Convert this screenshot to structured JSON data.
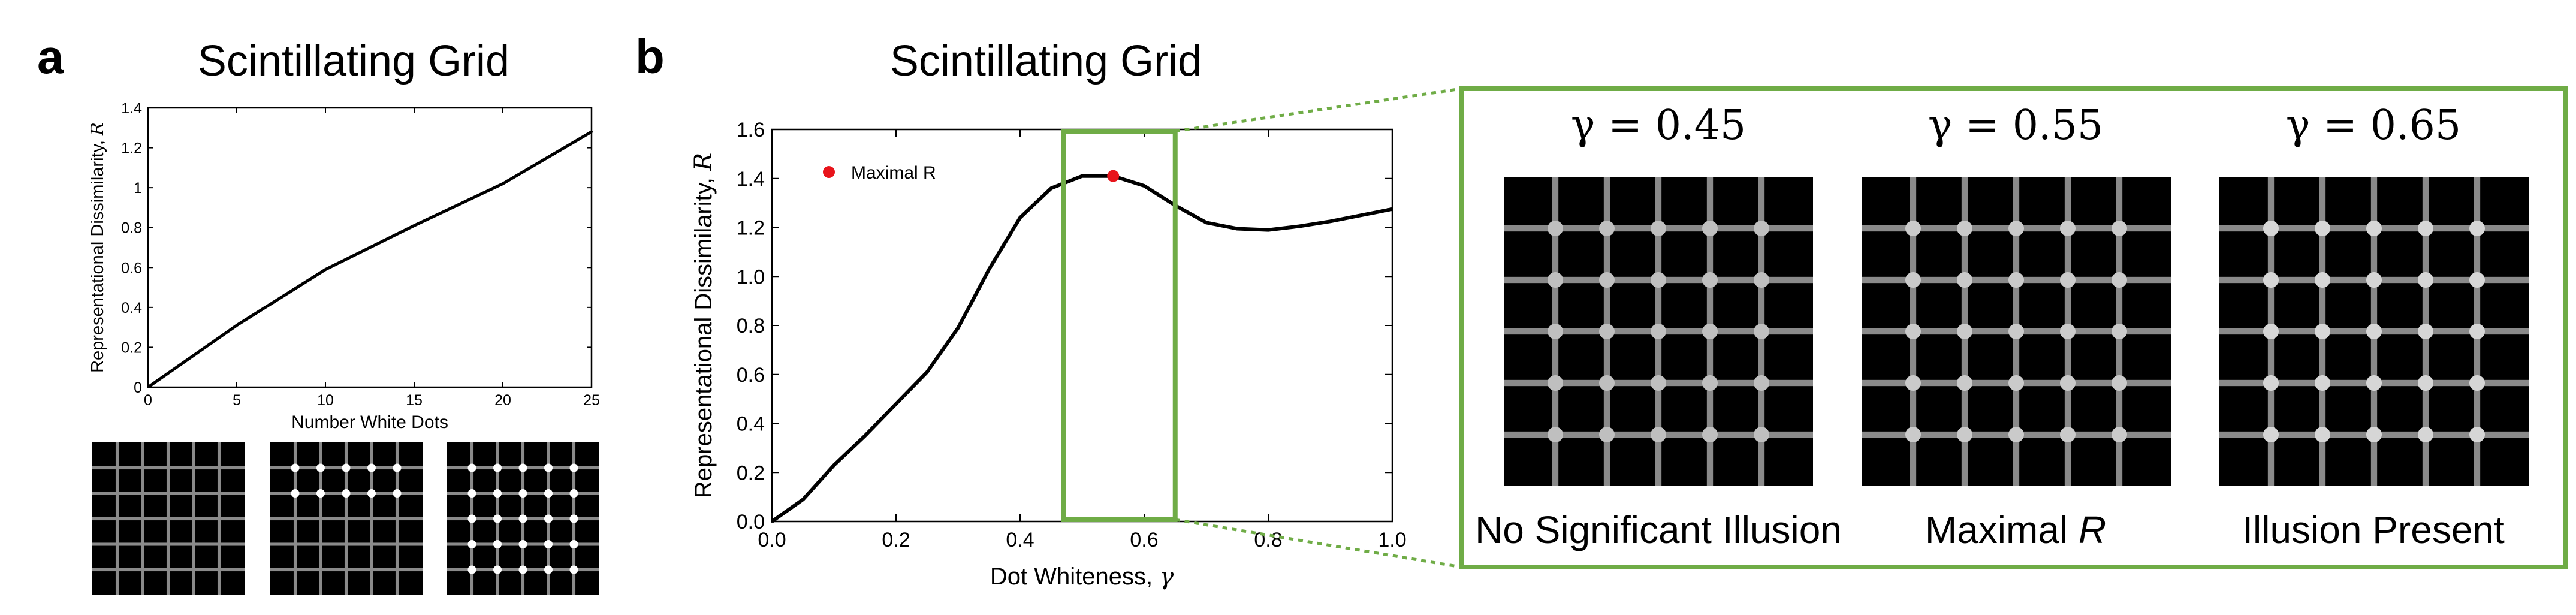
{
  "panel_a": {
    "letter": "a",
    "title": "Scintillating Grid",
    "example_dots": [
      0,
      10,
      25
    ]
  },
  "panel_b": {
    "letter": "b",
    "title": "Scintillating Grid",
    "legend_label": "Maximal R",
    "inset": {
      "items": [
        {
          "gamma_label": "γ = 0.45",
          "caption": "No Significant Illusion",
          "dot_whiteness": 0.45
        },
        {
          "gamma_label": "γ = 0.55",
          "caption": "Maximal ",
          "caption_italic": "R",
          "dot_whiteness": 0.55
        },
        {
          "gamma_label": "γ = 0.65",
          "caption": "Illusion Present",
          "dot_whiteness": 0.65
        }
      ]
    }
  },
  "colors": {
    "line": "#000000",
    "marker": "#e8141b",
    "highlight": "#6fac46",
    "grid_bar": "#8a8a8a",
    "square": "#000000"
  },
  "chart_data": [
    {
      "type": "line",
      "title": "Scintillating Grid",
      "xlabel": "Number White Dots",
      "ylabel": "Representational Dissimilarity, ",
      "ylabel_symbol": "R",
      "xlim": [
        0,
        25
      ],
      "ylim": [
        0,
        1.4
      ],
      "xticks": [
        0,
        5,
        10,
        15,
        20,
        25
      ],
      "yticks": [
        0,
        0.2,
        0.4,
        0.6,
        0.8,
        1.0,
        1.2,
        1.4
      ],
      "ytick_labels": [
        "0",
        "0.2",
        "0.4",
        "0.6",
        "0.8",
        "1",
        "1.2",
        "1.4"
      ],
      "grid": false,
      "x": [
        0,
        5,
        10,
        15,
        20,
        25
      ],
      "y": [
        0.0,
        0.31,
        0.59,
        0.81,
        1.02,
        1.28
      ]
    },
    {
      "type": "line",
      "title": "Scintillating Grid",
      "xlabel": "Dot Whiteness, ",
      "xlabel_symbol": "γ",
      "ylabel": "Representational Dissimilarity, ",
      "ylabel_symbol": "R",
      "xlim": [
        0,
        1.0
      ],
      "ylim": [
        0,
        1.6
      ],
      "xticks": [
        0,
        0.2,
        0.4,
        0.6,
        0.8,
        1.0
      ],
      "xtick_labels": [
        "0.0",
        "0.2",
        "0.4",
        "0.6",
        "0.8",
        "1.0"
      ],
      "yticks": [
        0,
        0.2,
        0.4,
        0.6,
        0.8,
        1.0,
        1.2,
        1.4,
        1.6
      ],
      "ytick_labels": [
        "0.0",
        "0.2",
        "0.4",
        "0.6",
        "0.8",
        "1.0",
        "1.2",
        "1.4",
        "1.6"
      ],
      "grid": false,
      "legend": "top-left",
      "x": [
        0.0,
        0.05,
        0.1,
        0.15,
        0.2,
        0.25,
        0.3,
        0.35,
        0.4,
        0.45,
        0.5,
        0.55,
        0.6,
        0.65,
        0.7,
        0.75,
        0.8,
        0.85,
        0.9,
        0.95,
        1.0
      ],
      "y": [
        0.0,
        0.09,
        0.23,
        0.35,
        0.48,
        0.61,
        0.79,
        1.03,
        1.24,
        1.36,
        1.41,
        1.41,
        1.37,
        1.29,
        1.22,
        1.195,
        1.19,
        1.205,
        1.225,
        1.25,
        1.275
      ],
      "marker": {
        "x": 0.55,
        "y": 1.41
      },
      "highlight_range": [
        0.47,
        0.65
      ]
    }
  ]
}
